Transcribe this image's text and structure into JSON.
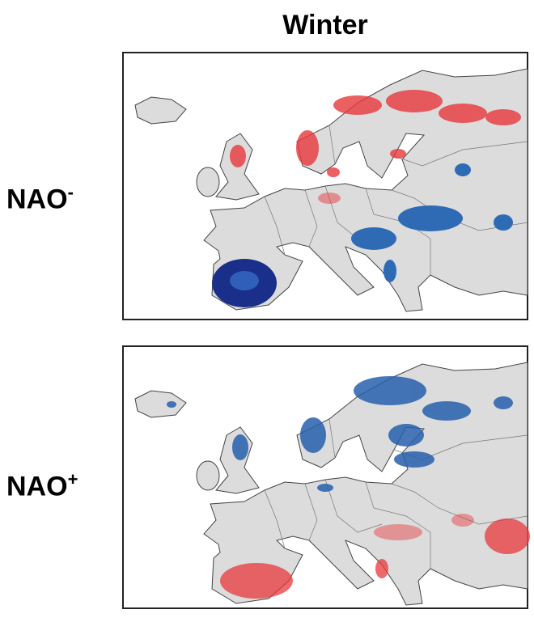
{
  "title": "Winter",
  "rows": [
    {
      "label": "NAO",
      "sup": "-"
    },
    {
      "label": "NAO",
      "sup": "+"
    }
  ]
}
